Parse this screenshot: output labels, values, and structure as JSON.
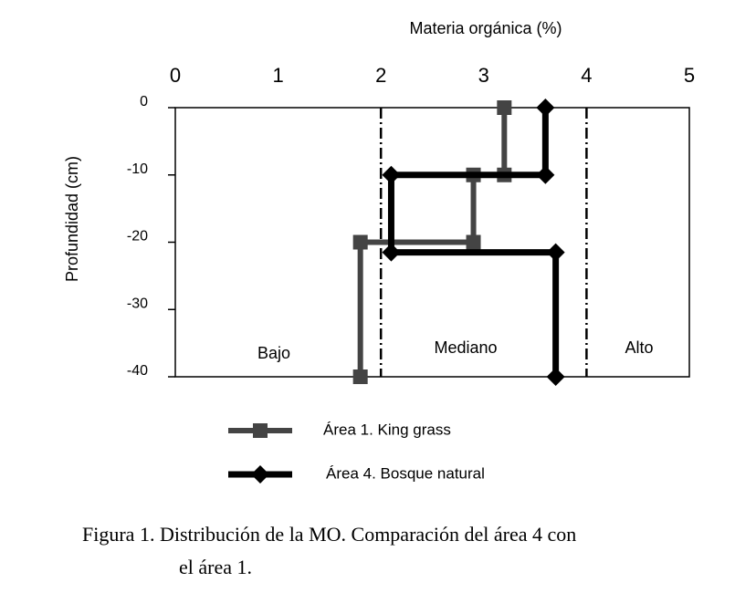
{
  "chart_data": {
    "type": "line",
    "title": "Materia orgánica (%)",
    "y_label": "Profundidad (cm)",
    "xlim": [
      0,
      5
    ],
    "xticks": [
      0,
      1,
      2,
      3,
      4,
      5
    ],
    "ylim": [
      -40,
      0
    ],
    "yticks": [
      0,
      -10,
      -20,
      -30,
      -40
    ],
    "thresholds": [
      2,
      4
    ],
    "annotations": [
      "Bajo",
      "Mediano",
      "Alto"
    ],
    "series": [
      {
        "name": "Área 1. King grass",
        "color": "#444444",
        "marker": "square",
        "x": [
          3.2,
          3.2,
          2.9,
          2.9,
          1.8,
          1.8
        ],
        "values": [
          0,
          -10,
          -10,
          -20,
          -20,
          -40
        ]
      },
      {
        "name": "Área 4. Bosque natural",
        "color": "#000000",
        "marker": "diamond",
        "x": [
          3.6,
          3.6,
          2.1,
          2.1,
          3.7,
          3.7
        ],
        "values": [
          0,
          -10,
          -10,
          -21.5,
          -21.5,
          -40
        ]
      }
    ],
    "caption": [
      "Figura 1. Distribución de la MO. Comparación  del   área 4 con",
      "el área 1."
    ]
  }
}
